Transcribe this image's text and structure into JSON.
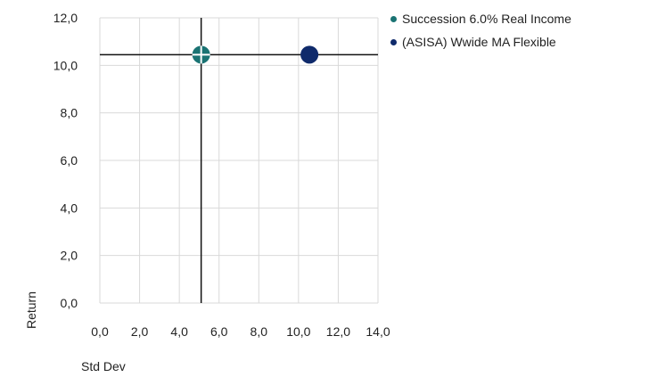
{
  "chart_data": {
    "type": "scatter",
    "xlabel": "Std Dev",
    "ylabel": "Return",
    "xlim": [
      0,
      14
    ],
    "ylim": [
      0,
      12
    ],
    "xticks": [
      "0,0",
      "2,0",
      "4,0",
      "6,0",
      "8,0",
      "10,0",
      "12,0",
      "14,0"
    ],
    "yticks": [
      "0,0",
      "2,0",
      "4,0",
      "6,0",
      "8,0",
      "10,0",
      "12,0"
    ],
    "grid": true,
    "legend_position": "top-right",
    "series": [
      {
        "name": "Succession 6.0% Real Income",
        "color": "#1a7373",
        "x": 5.1,
        "y": 10.45,
        "marker": "crosshair"
      },
      {
        "name": "(ASISA) Wwide MA Flexible",
        "color": "#0f2a6b",
        "x": 10.55,
        "y": 10.45,
        "marker": "circle"
      }
    ],
    "reference_lines": {
      "x": 5.1,
      "y": 10.45
    }
  }
}
